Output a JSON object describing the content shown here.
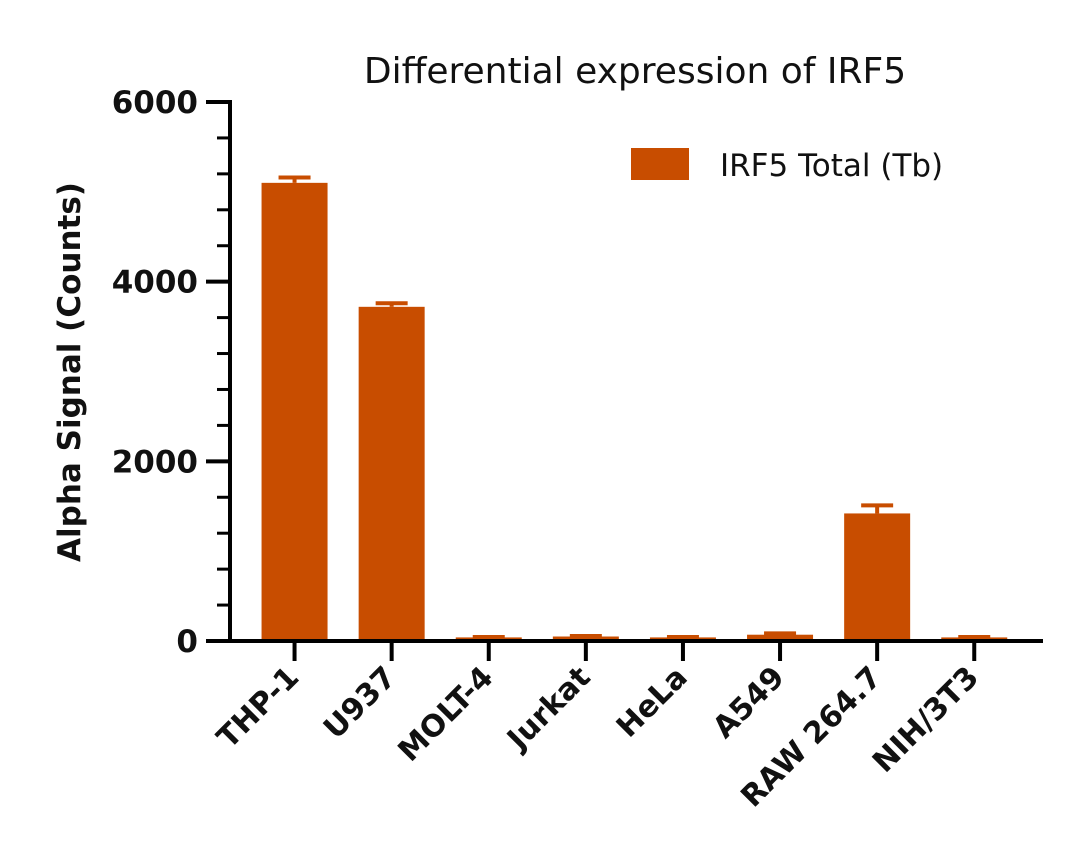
{
  "chart_data": {
    "type": "bar",
    "title": "Differential expression of IRF5",
    "xlabel": "",
    "ylabel": "Alpha Signal (Counts)",
    "ylim": [
      0,
      6000
    ],
    "yticks": [
      0,
      2000,
      4000,
      6000
    ],
    "yticks_text": [
      "0",
      "2000",
      "4000",
      "6000"
    ],
    "categories": [
      "THP-1",
      "U937",
      "MOLT-4",
      "Jurkat",
      "HeLa",
      "A549",
      "RAW 264.7",
      "NIH/3T3"
    ],
    "series": [
      {
        "name": "IRF5 Total (Tb)",
        "color": "#c84d00",
        "values": [
          5100,
          3720,
          40,
          50,
          40,
          70,
          1420,
          40
        ],
        "error": [
          60,
          40,
          5,
          5,
          5,
          15,
          90,
          5
        ]
      }
    ],
    "legend_position": "top-right",
    "grid": false
  }
}
